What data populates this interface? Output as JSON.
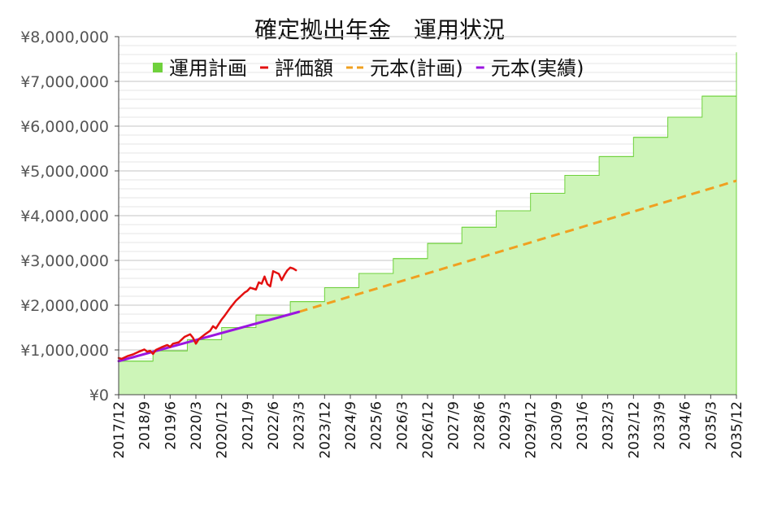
{
  "chart_data": {
    "type": "line",
    "title": "確定拠出年金　運用状況",
    "ylim": [
      0,
      8000000
    ],
    "grid": true,
    "legend_position": "top",
    "x_range": [
      "2017/12",
      "2035/12"
    ],
    "x_ticks": [
      "2017/12",
      "2018/9",
      "2019/6",
      "2020/3",
      "2020/12",
      "2021/9",
      "2022/6",
      "2023/3",
      "2023/12",
      "2024/9",
      "2025/6",
      "2026/3",
      "2026/12",
      "2027/9",
      "2028/6",
      "2029/3",
      "2029/12",
      "2030/9",
      "2031/6",
      "2032/3",
      "2032/12",
      "2033/9",
      "2034/6",
      "2035/3",
      "2035/12"
    ],
    "y_ticks": [
      {
        "value": 0,
        "label": "¥0"
      },
      {
        "value": 1000000,
        "label": "¥1,000,000"
      },
      {
        "value": 2000000,
        "label": "¥2,000,000"
      },
      {
        "value": 3000000,
        "label": "¥3,000,000"
      },
      {
        "value": 4000000,
        "label": "¥4,000,000"
      },
      {
        "value": 5000000,
        "label": "¥5,000,000"
      },
      {
        "value": 6000000,
        "label": "¥6,000,000"
      },
      {
        "value": 7000000,
        "label": "¥7,000,000"
      },
      {
        "value": 8000000,
        "label": "¥8,000,000"
      }
    ],
    "series": [
      {
        "name": "運用計画",
        "kind": "step-area",
        "color": "#6fd13c",
        "fill": "#cdf5b8",
        "x": [
          "2017/12",
          "2018/12",
          "2019/12",
          "2020/12",
          "2021/12",
          "2022/12",
          "2023/12",
          "2024/12",
          "2025/12",
          "2026/12",
          "2027/12",
          "2028/12",
          "2029/12",
          "2030/12",
          "2031/12",
          "2032/12",
          "2033/12",
          "2034/12",
          "2035/12"
        ],
        "values": [
          750000,
          980000,
          1230000,
          1500000,
          1780000,
          2080000,
          2390000,
          2710000,
          3040000,
          3380000,
          3740000,
          4110000,
          4500000,
          4900000,
          5320000,
          5750000,
          6200000,
          6670000,
          7150000
        ],
        "end": {
          "x": "2035/12",
          "value": 7650000
        }
      },
      {
        "name": "評価額",
        "kind": "line",
        "color": "#e31010",
        "x": [
          "2017/12",
          "2018/1",
          "2018/3",
          "2018/5",
          "2018/7",
          "2018/9",
          "2018/10",
          "2018/11",
          "2018/12",
          "2019/1",
          "2019/3",
          "2019/5",
          "2019/6",
          "2019/7",
          "2019/9",
          "2019/11",
          "2020/1",
          "2020/2",
          "2020/3",
          "2020/4",
          "2020/6",
          "2020/8",
          "2020/9",
          "2020/10",
          "2020/12",
          "2021/1",
          "2021/3",
          "2021/5",
          "2021/6",
          "2021/8",
          "2021/9",
          "2021/10",
          "2021/12",
          "2022/1",
          "2022/2",
          "2022/3",
          "2022/4",
          "2022/5",
          "2022/6",
          "2022/8",
          "2022/9",
          "2022/10",
          "2022/11",
          "2022/12",
          "2023/1",
          "2023/2"
        ],
        "values": [
          820000,
          800000,
          860000,
          900000,
          960000,
          1010000,
          960000,
          980000,
          910000,
          1000000,
          1060000,
          1110000,
          1070000,
          1140000,
          1170000,
          1290000,
          1350000,
          1270000,
          1140000,
          1240000,
          1340000,
          1430000,
          1530000,
          1480000,
          1680000,
          1760000,
          1940000,
          2100000,
          2160000,
          2280000,
          2320000,
          2390000,
          2350000,
          2510000,
          2480000,
          2640000,
          2470000,
          2420000,
          2760000,
          2700000,
          2560000,
          2680000,
          2780000,
          2840000,
          2820000,
          2780000
        ]
      },
      {
        "name": "元本(計画)",
        "kind": "dashed-line",
        "color": "#f0a020",
        "x": [
          "2023/3",
          "2035/12"
        ],
        "values": [
          1850000,
          4780000
        ]
      },
      {
        "name": "元本(実績)",
        "kind": "line",
        "color": "#9b15e0",
        "x": [
          "2017/12",
          "2023/3"
        ],
        "values": [
          750000,
          1850000
        ]
      }
    ]
  }
}
